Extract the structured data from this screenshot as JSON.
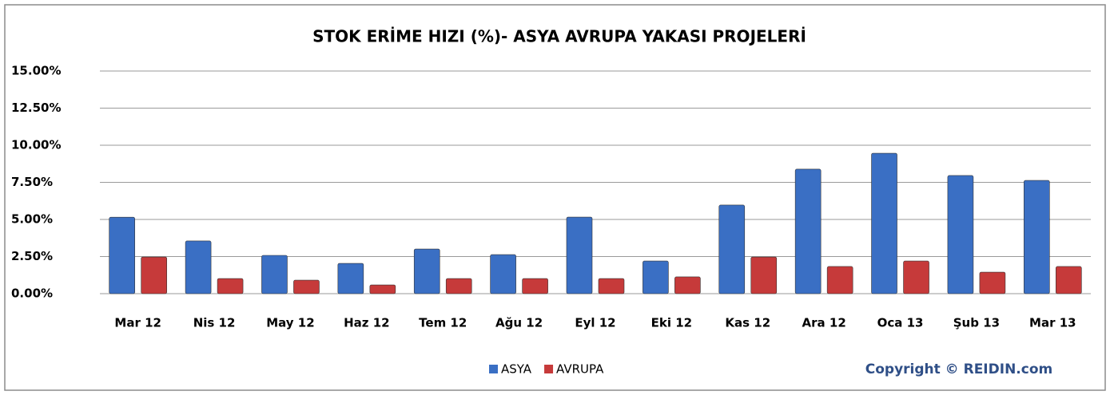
{
  "chart_data": {
    "type": "bar",
    "title": "STOK ERİME HIZI (%)- ASYA AVRUPA YAKASI PROJELERİ",
    "categories": [
      "Mar 12",
      "Nis 12",
      "May 12",
      "Haz 12",
      "Tem 12",
      "Ağu 12",
      "Eyl 12",
      "Eki 12",
      "Kas 12",
      "Ara 12",
      "Oca 13",
      "Şub 13",
      "Mar 13"
    ],
    "series": [
      {
        "name": "ASYA",
        "color": "#3a6fc4",
        "values": [
          5.15,
          3.55,
          2.58,
          2.04,
          3.01,
          2.63,
          5.16,
          2.2,
          5.97,
          8.39,
          9.46,
          7.96,
          7.63
        ]
      },
      {
        "name": "AVRUPA",
        "color": "#c63a3a",
        "values": [
          2.47,
          1.02,
          0.91,
          0.59,
          1.02,
          1.02,
          1.02,
          1.13,
          2.47,
          1.83,
          2.2,
          1.45,
          1.83
        ]
      }
    ],
    "ylim": [
      0,
      15
    ],
    "yticks": [
      {
        "value": 0,
        "label": "0.00%"
      },
      {
        "value": 2.5,
        "label": "2.50%"
      },
      {
        "value": 5,
        "label": "5.00%"
      },
      {
        "value": 7.5,
        "label": "7.50%"
      },
      {
        "value": 10,
        "label": "10.00%"
      },
      {
        "value": 12.5,
        "label": "12.50%"
      },
      {
        "value": 15,
        "label": "15.00%"
      }
    ],
    "grid": true,
    "legend": "bottom",
    "copyright": "Copyright © REIDIN.com"
  }
}
